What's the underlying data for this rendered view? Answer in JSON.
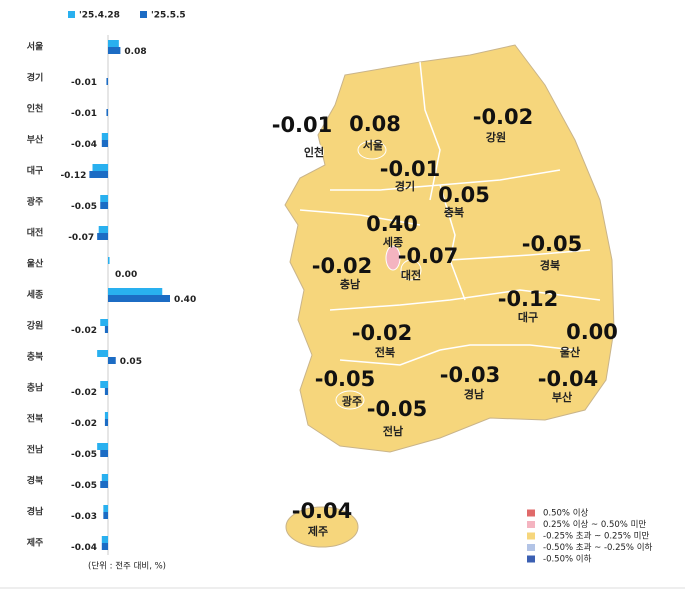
{
  "chart_data": {
    "type": "bar",
    "orientation": "horizontal",
    "categories": [
      "서울",
      "경기",
      "인천",
      "부산",
      "대구",
      "광주",
      "대전",
      "울산",
      "세종",
      "강원",
      "충북",
      "충남",
      "전북",
      "전남",
      "경북",
      "경남",
      "제주"
    ],
    "series": [
      {
        "name": "'25.4.28",
        "color": "#29b0ef",
        "values": [
          0.07,
          0.0,
          0.0,
          -0.04,
          -0.1,
          -0.05,
          -0.06,
          0.01,
          0.35,
          -0.05,
          -0.07,
          -0.05,
          -0.02,
          -0.07,
          -0.04,
          -0.03,
          -0.04
        ]
      },
      {
        "name": "'25.5.5",
        "color": "#1c6cc4",
        "values": [
          0.08,
          -0.01,
          -0.01,
          -0.04,
          -0.12,
          -0.05,
          -0.07,
          0,
          0.4,
          -0.02,
          0.05,
          -0.02,
          -0.02,
          -0.05,
          -0.05,
          -0.03,
          -0.04
        ],
        "value_labels": [
          "0.08",
          "-0.01",
          "-0.01",
          "-0.04",
          "-0.12",
          "-0.05",
          "-0.07",
          "0.00",
          "0.40",
          "-0.02",
          "0.05",
          "-0.02",
          "-0.02",
          "-0.05",
          "-0.05",
          "-0.03",
          "-0.04"
        ]
      }
    ],
    "unit_note": "(단위 : 전주 대비, %)",
    "map_legend": [
      {
        "label": "0.50% 이상",
        "color": "#e06a6a"
      },
      {
        "label": "0.25% 이상 ~ 0.50% 미만",
        "color": "#f4b4c0"
      },
      {
        "label": "-0.25% 초과 ~ 0.25% 미만",
        "color": "#f6d67c"
      },
      {
        "label": "-0.50% 초과 ~ -0.25% 이하",
        "color": "#b3c4e6"
      },
      {
        "label": "-0.50% 이하",
        "color": "#3b5fb2"
      }
    ]
  }
}
